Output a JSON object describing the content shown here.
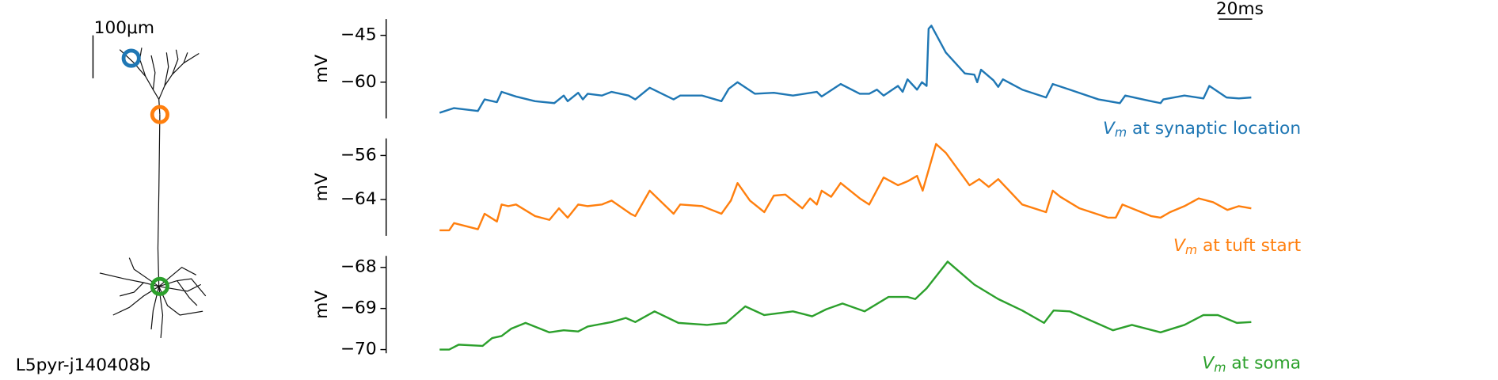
{
  "morphology": {
    "cell": "L5pyr-j140408b",
    "scalebar_label": "100μm"
  },
  "time_scalebar": {
    "value": 20,
    "label": "20ms"
  },
  "chart_data": [
    {
      "type": "line",
      "ylabel": "mV",
      "label": {
        "symbol": "V",
        "subscript": "m",
        "text": " at synaptic location"
      },
      "xlim": [
        0,
        485.7
      ],
      "ylim": [
        -71.6,
        -39.8
      ],
      "yticks": [
        {
          "value": -45,
          "label": "−45"
        },
        {
          "value": -60,
          "label": "−60"
        }
      ],
      "x": [
        0,
        8.6,
        22.9,
        26.9,
        34.3,
        37.1,
        45.7,
        57.1,
        68.6,
        74.3,
        76.6,
        82.9,
        85.7,
        88.6,
        97.1,
        102.9,
        113.1,
        117.1,
        125.7,
        140,
        144,
        157.1,
        168.6,
        173.1,
        178.3,
        188.6,
        200,
        211.4,
        225.7,
        228.6,
        240,
        251.4,
        257.1,
        261.7,
        265.7,
        274.3,
        277.1,
        280,
        285.7,
        288.6,
        291.4,
        292.6,
        294.3,
        302.9,
        314.3,
        320,
        321.7,
        324,
        331.4,
        334.3,
        337.1,
        348.6,
        362.9,
        366.9,
        377.1,
        394.3,
        407.1,
        410.3,
        425.7,
        431.4,
        433.1,
        445.7,
        457.1,
        460.6,
        470.9,
        478.3,
        485.7
      ],
      "series": [
        {
          "color": "#1f77b4",
          "values": [
            -69.8,
            -68.3,
            -69.2,
            -65.5,
            -66.4,
            -63.1,
            -64.6,
            -66.1,
            -66.7,
            -64.3,
            -66.1,
            -63.4,
            -65.5,
            -63.7,
            -64.3,
            -63.1,
            -64.3,
            -65.5,
            -61.8,
            -65.5,
            -64.3,
            -64.3,
            -66.1,
            -62.1,
            -60.0,
            -63.7,
            -63.4,
            -64.3,
            -63.1,
            -64.6,
            -60.6,
            -63.7,
            -63.7,
            -62.4,
            -64.3,
            -61.2,
            -63.1,
            -59.1,
            -62.4,
            -60.0,
            -61.2,
            -42.9,
            -41.9,
            -50.5,
            -57.2,
            -57.6,
            -60.0,
            -56.0,
            -59.4,
            -61.5,
            -59.1,
            -62.4,
            -64.9,
            -60.6,
            -62.4,
            -65.5,
            -66.7,
            -64.3,
            -66.1,
            -66.7,
            -65.5,
            -64.3,
            -65.2,
            -61.2,
            -64.9,
            -65.2,
            -64.9
          ]
        }
      ]
    },
    {
      "type": "line",
      "ylabel": "mV",
      "label": {
        "symbol": "V",
        "subscript": "m",
        "text": " at tuft start"
      },
      "xlim": [
        0,
        485.7
      ],
      "ylim": [
        -70.6,
        -52.9
      ],
      "yticks": [
        {
          "value": -56,
          "label": "−56"
        },
        {
          "value": -64,
          "label": "−64"
        }
      ],
      "x": [
        0,
        5.7,
        8.6,
        22.9,
        26.9,
        34.3,
        37.1,
        41.1,
        45.7,
        57.1,
        65.7,
        71.4,
        76.6,
        82.9,
        88.6,
        97.1,
        102.9,
        114.3,
        117.1,
        125.7,
        140,
        144,
        157.1,
        168.6,
        174.3,
        178.3,
        185.7,
        194.3,
        200,
        206.9,
        217.1,
        221.7,
        225.7,
        228.6,
        234.3,
        240,
        251.4,
        257.1,
        265.7,
        274.3,
        280,
        285.7,
        289.1,
        297.1,
        302.9,
        317.1,
        322.9,
        328.6,
        334.3,
        348.6,
        362.9,
        366.9,
        371.4,
        382.9,
        400,
        404.6,
        408.6,
        425.7,
        431.4,
        437.1,
        445.7,
        454.3,
        462.9,
        471.4,
        478.3,
        485.7
      ],
      "series": [
        {
          "color": "#ff7f0e",
          "values": [
            -69.6,
            -69.6,
            -68.3,
            -69.4,
            -66.6,
            -68.0,
            -64.9,
            -65.2,
            -64.9,
            -67.0,
            -67.7,
            -65.6,
            -67.3,
            -64.9,
            -65.2,
            -64.9,
            -64.2,
            -66.6,
            -67.0,
            -62.4,
            -66.6,
            -64.9,
            -65.2,
            -66.6,
            -64.2,
            -61.0,
            -64.2,
            -66.3,
            -63.3,
            -63.1,
            -65.6,
            -63.8,
            -64.9,
            -62.4,
            -63.5,
            -61.0,
            -63.8,
            -64.9,
            -60.0,
            -61.4,
            -60.7,
            -59.7,
            -62.4,
            -53.9,
            -55.5,
            -61.4,
            -60.3,
            -61.7,
            -60.3,
            -64.9,
            -66.3,
            -62.4,
            -63.5,
            -65.6,
            -67.3,
            -67.3,
            -64.9,
            -67.0,
            -67.3,
            -66.3,
            -65.2,
            -63.8,
            -64.5,
            -65.9,
            -65.2,
            -65.6
          ]
        }
      ]
    },
    {
      "type": "line",
      "ylabel": "mV",
      "label": {
        "symbol": "V",
        "subscript": "m",
        "text": " at soma"
      },
      "xlim": [
        0,
        485.7
      ],
      "ylim": [
        -70.09,
        -67.72
      ],
      "yticks": [
        {
          "value": -68,
          "label": "−68"
        },
        {
          "value": -69,
          "label": "−69"
        },
        {
          "value": -70,
          "label": "−70"
        }
      ],
      "x": [
        0,
        5.7,
        11.4,
        25.7,
        31.4,
        37.1,
        42.9,
        51.4,
        65.7,
        74.3,
        82.9,
        88.6,
        102.9,
        111.4,
        117.1,
        128.6,
        142.9,
        160,
        171.4,
        182.9,
        194.3,
        211.4,
        222.9,
        231.4,
        241.1,
        254.3,
        268.6,
        280,
        284.6,
        291.4,
        304,
        311.4,
        320,
        334.3,
        348.6,
        361.7,
        367.4,
        377.1,
        402.9,
        414.3,
        431.4,
        445.7,
        457.1,
        465.7,
        477.1,
        485.7
      ],
      "series": [
        {
          "color": "#2ca02c",
          "values": [
            -70.0,
            -70.0,
            -69.88,
            -69.91,
            -69.72,
            -69.67,
            -69.49,
            -69.35,
            -69.58,
            -69.53,
            -69.56,
            -69.44,
            -69.33,
            -69.23,
            -69.33,
            -69.07,
            -69.35,
            -69.4,
            -69.35,
            -68.95,
            -69.16,
            -69.07,
            -69.19,
            -69.02,
            -68.88,
            -69.07,
            -68.72,
            -68.72,
            -68.77,
            -68.51,
            -67.86,
            -68.12,
            -68.42,
            -68.77,
            -69.05,
            -69.35,
            -69.05,
            -69.07,
            -69.53,
            -69.4,
            -69.58,
            -69.4,
            -69.16,
            -69.16,
            -69.35,
            -69.33
          ]
        }
      ]
    }
  ]
}
